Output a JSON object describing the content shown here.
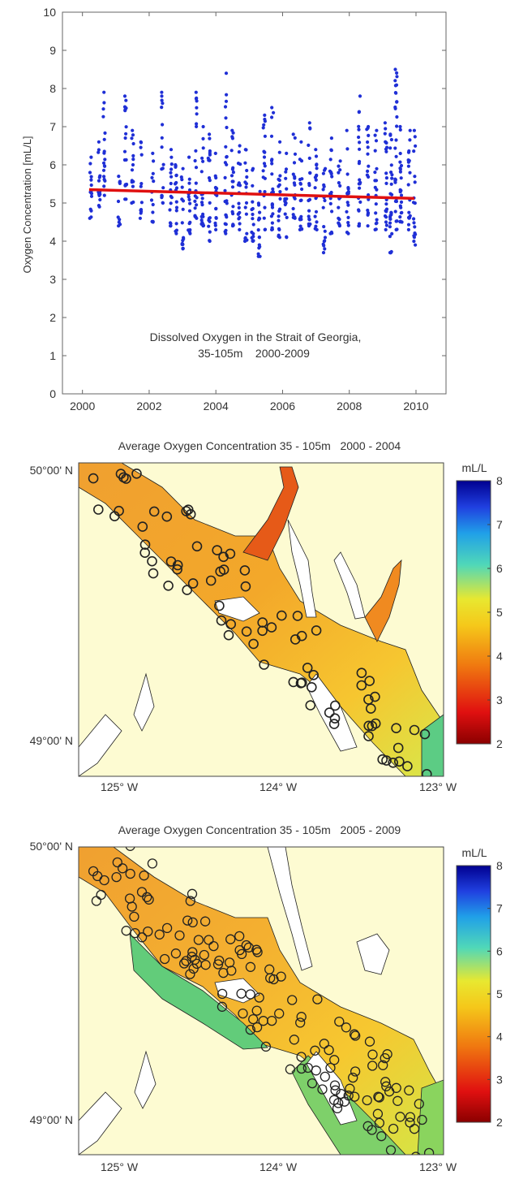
{
  "chart_data": [
    {
      "type": "scatter",
      "title": "Dissolved Oxygen in the Strait of Georgia,",
      "subtitle": "35-105m    2000-2009",
      "xlabel": "",
      "ylabel": "Oxygen Concentration [mL/L]",
      "xlim": [
        1999.4,
        2010.9
      ],
      "ylim": [
        0,
        10
      ],
      "xticks": [
        2000,
        2002,
        2004,
        2006,
        2008,
        2010
      ],
      "yticks": [
        0,
        1,
        2,
        3,
        4,
        5,
        6,
        7,
        8,
        9,
        10
      ],
      "point_color": "#1f2fd6",
      "trend_color": "#e01010",
      "trend": {
        "x": [
          2000.2,
          2009.95
        ],
        "y": [
          5.35,
          5.12
        ]
      },
      "cruises": [
        {
          "x": 2000.25,
          "ymin": 4.6,
          "ymax": 6.2,
          "n": 14
        },
        {
          "x": 2000.5,
          "ymin": 4.9,
          "ymax": 6.6,
          "n": 14
        },
        {
          "x": 2000.65,
          "ymin": 5.2,
          "ymax": 7.9,
          "n": 18
        },
        {
          "x": 2001.1,
          "ymin": 4.4,
          "ymax": 5.7,
          "n": 10
        },
        {
          "x": 2001.3,
          "ymin": 5.1,
          "ymax": 7.8,
          "n": 18
        },
        {
          "x": 2001.5,
          "ymin": 5.0,
          "ymax": 6.9,
          "n": 14
        },
        {
          "x": 2001.75,
          "ymin": 4.6,
          "ymax": 6.6,
          "n": 12
        },
        {
          "x": 2002.1,
          "ymin": 4.5,
          "ymax": 6.3,
          "n": 12
        },
        {
          "x": 2002.4,
          "ymin": 5.0,
          "ymax": 7.9,
          "n": 18
        },
        {
          "x": 2002.65,
          "ymin": 4.4,
          "ymax": 6.4,
          "n": 16
        },
        {
          "x": 2002.8,
          "ymin": 4.2,
          "ymax": 6.0,
          "n": 16
        },
        {
          "x": 2003.0,
          "ymin": 3.8,
          "ymax": 5.9,
          "n": 18
        },
        {
          "x": 2003.2,
          "ymin": 4.2,
          "ymax": 6.2,
          "n": 16
        },
        {
          "x": 2003.4,
          "ymin": 4.6,
          "ymax": 7.9,
          "n": 22
        },
        {
          "x": 2003.6,
          "ymin": 4.4,
          "ymax": 7.0,
          "n": 20
        },
        {
          "x": 2003.8,
          "ymin": 4.0,
          "ymax": 6.8,
          "n": 20
        },
        {
          "x": 2004.0,
          "ymin": 4.3,
          "ymax": 6.3,
          "n": 16
        },
        {
          "x": 2004.3,
          "ymin": 4.2,
          "ymax": 8.4,
          "n": 24
        },
        {
          "x": 2004.5,
          "ymin": 4.4,
          "ymax": 6.9,
          "n": 20
        },
        {
          "x": 2004.7,
          "ymin": 4.3,
          "ymax": 6.5,
          "n": 18
        },
        {
          "x": 2004.9,
          "ymin": 4.0,
          "ymax": 6.4,
          "n": 18
        },
        {
          "x": 2005.1,
          "ymin": 4.0,
          "ymax": 5.9,
          "n": 16
        },
        {
          "x": 2005.3,
          "ymin": 3.6,
          "ymax": 5.3,
          "n": 16
        },
        {
          "x": 2005.45,
          "ymin": 4.3,
          "ymax": 7.3,
          "n": 20
        },
        {
          "x": 2005.7,
          "ymin": 4.3,
          "ymax": 7.5,
          "n": 22
        },
        {
          "x": 2005.9,
          "ymin": 4.1,
          "ymax": 6.6,
          "n": 18
        },
        {
          "x": 2006.1,
          "ymin": 4.1,
          "ymax": 6.3,
          "n": 16
        },
        {
          "x": 2006.35,
          "ymin": 4.6,
          "ymax": 6.8,
          "n": 18
        },
        {
          "x": 2006.55,
          "ymin": 4.3,
          "ymax": 6.6,
          "n": 18
        },
        {
          "x": 2006.8,
          "ymin": 4.4,
          "ymax": 7.1,
          "n": 18
        },
        {
          "x": 2007.0,
          "ymin": 4.3,
          "ymax": 6.4,
          "n": 18
        },
        {
          "x": 2007.25,
          "ymin": 3.7,
          "ymax": 5.9,
          "n": 18
        },
        {
          "x": 2007.45,
          "ymin": 4.2,
          "ymax": 6.7,
          "n": 18
        },
        {
          "x": 2007.7,
          "ymin": 4.4,
          "ymax": 6.1,
          "n": 16
        },
        {
          "x": 2007.95,
          "ymin": 4.2,
          "ymax": 6.9,
          "n": 18
        },
        {
          "x": 2008.3,
          "ymin": 4.4,
          "ymax": 7.8,
          "n": 22
        },
        {
          "x": 2008.55,
          "ymin": 4.4,
          "ymax": 7.0,
          "n": 18
        },
        {
          "x": 2008.8,
          "ymin": 4.3,
          "ymax": 6.9,
          "n": 18
        },
        {
          "x": 2009.1,
          "ymin": 4.3,
          "ymax": 7.1,
          "n": 22
        },
        {
          "x": 2009.25,
          "ymin": 3.7,
          "ymax": 6.8,
          "n": 26
        },
        {
          "x": 2009.4,
          "ymin": 4.3,
          "ymax": 8.5,
          "n": 30
        },
        {
          "x": 2009.55,
          "ymin": 4.5,
          "ymax": 7.0,
          "n": 22
        },
        {
          "x": 2009.8,
          "ymin": 4.3,
          "ymax": 6.9,
          "n": 18
        },
        {
          "x": 2009.95,
          "ymin": 3.9,
          "ymax": 6.9,
          "n": 18
        }
      ]
    },
    {
      "type": "heatmap",
      "title": "Average Oxygen Concentration 35 - 105m   2000 - 2004",
      "xticks": [
        "125° W",
        "124° W",
        "123° W"
      ],
      "yticks": [
        "50°00' N",
        "49°00' N"
      ],
      "colorbar_label": "mL/L",
      "colorbar_range": [
        2,
        8
      ],
      "colorbar_ticks": [
        2,
        3,
        4,
        5,
        6,
        7,
        8
      ],
      "stations_count": 80
    },
    {
      "type": "heatmap",
      "title": "Average Oxygen Concentration 35 - 105m   2005 - 2009",
      "xticks": [
        "125° W",
        "124° W",
        "123° W"
      ],
      "yticks": [
        "50°00' N",
        "49°00' N"
      ],
      "colorbar_label": "mL/L",
      "colorbar_range": [
        2,
        8
      ],
      "colorbar_ticks": [
        2,
        3,
        4,
        5,
        6,
        7,
        8
      ],
      "stations_count": 150
    }
  ]
}
